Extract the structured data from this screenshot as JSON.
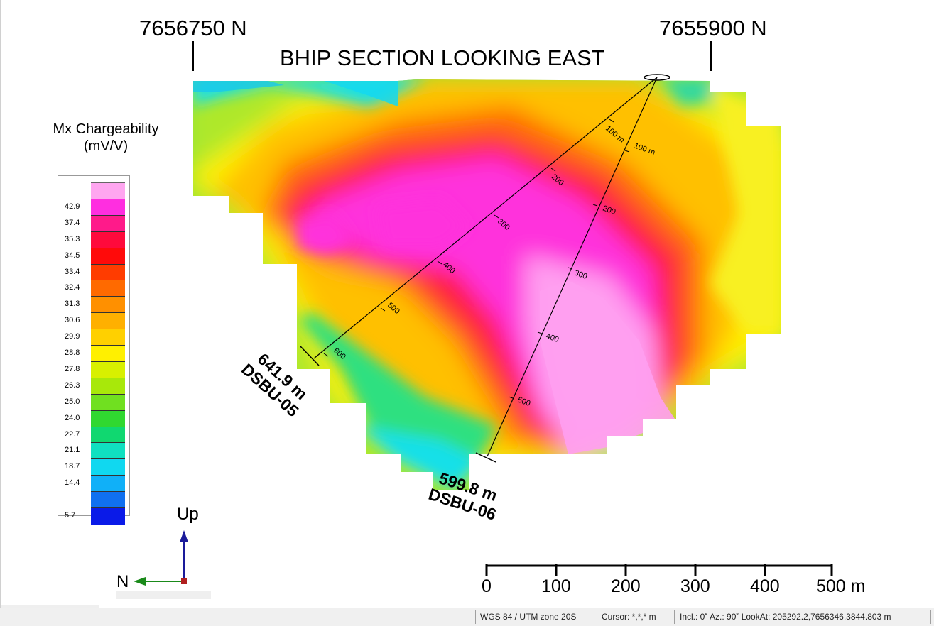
{
  "section": {
    "title": "BHIP SECTION LOOKING EAST",
    "northing_left": "7656750 N",
    "northing_right": "7655900 N"
  },
  "legend": {
    "title_line1": "Mx Chargeability",
    "title_line2": "(mV/V)",
    "bins": [
      {
        "label": "",
        "color": "#ffa6f0"
      },
      {
        "label": "42.9",
        "color": "#ff2ee0"
      },
      {
        "label": "37.4",
        "color": "#ff1a8a"
      },
      {
        "label": "35.3",
        "color": "#ff0a3c"
      },
      {
        "label": "34.5",
        "color": "#ff0a0a"
      },
      {
        "label": "33.4",
        "color": "#ff3c00"
      },
      {
        "label": "32.4",
        "color": "#ff6a00"
      },
      {
        "label": "31.3",
        "color": "#ff9000"
      },
      {
        "label": "30.6",
        "color": "#ffb000"
      },
      {
        "label": "29.9",
        "color": "#ffd000"
      },
      {
        "label": "28.8",
        "color": "#fff000"
      },
      {
        "label": "27.8",
        "color": "#d8f000"
      },
      {
        "label": "26.3",
        "color": "#a8e80a"
      },
      {
        "label": "25.0",
        "color": "#70e020"
      },
      {
        "label": "24.0",
        "color": "#30d830"
      },
      {
        "label": "22.7",
        "color": "#10d870"
      },
      {
        "label": "21.1",
        "color": "#10e0c0"
      },
      {
        "label": "18.7",
        "color": "#10d8f0"
      },
      {
        "label": "14.4",
        "color": "#10b0f8"
      },
      {
        "label": "",
        "color": "#1070f0"
      },
      {
        "label": "5.7",
        "color": "#0a1ae8"
      }
    ]
  },
  "drillholes": [
    {
      "id": "DSBU-05",
      "depth_label": "641.9 m",
      "depth_ticks": [
        "100 m",
        "200",
        "300",
        "400",
        "500",
        "600"
      ]
    },
    {
      "id": "DSBU-06",
      "depth_label": "599.8 m",
      "depth_ticks": [
        "100 m",
        "200",
        "300",
        "400",
        "500"
      ]
    }
  ],
  "scale_bar": {
    "labels": [
      "0",
      "100",
      "200",
      "300",
      "400",
      "500 m"
    ]
  },
  "axis_indicator": {
    "up_label": "Up",
    "north_label": "N"
  },
  "status_bar": {
    "projection": "WGS 84 / UTM zone 20S",
    "cursor": "Cursor: *,*,* m",
    "view": "Incl.: 0˚ Az.: 90˚ LookAt: 205292.2,7656346,3844.803 m"
  },
  "colors": {
    "pink_high": "#ff9ff0",
    "magenta": "#ff30dc",
    "red": "#ff1a3c",
    "orange": "#ff8800",
    "yellow": "#fff000",
    "green": "#6ee024",
    "cyan": "#12e0e8",
    "blue": "#0a30e8"
  }
}
